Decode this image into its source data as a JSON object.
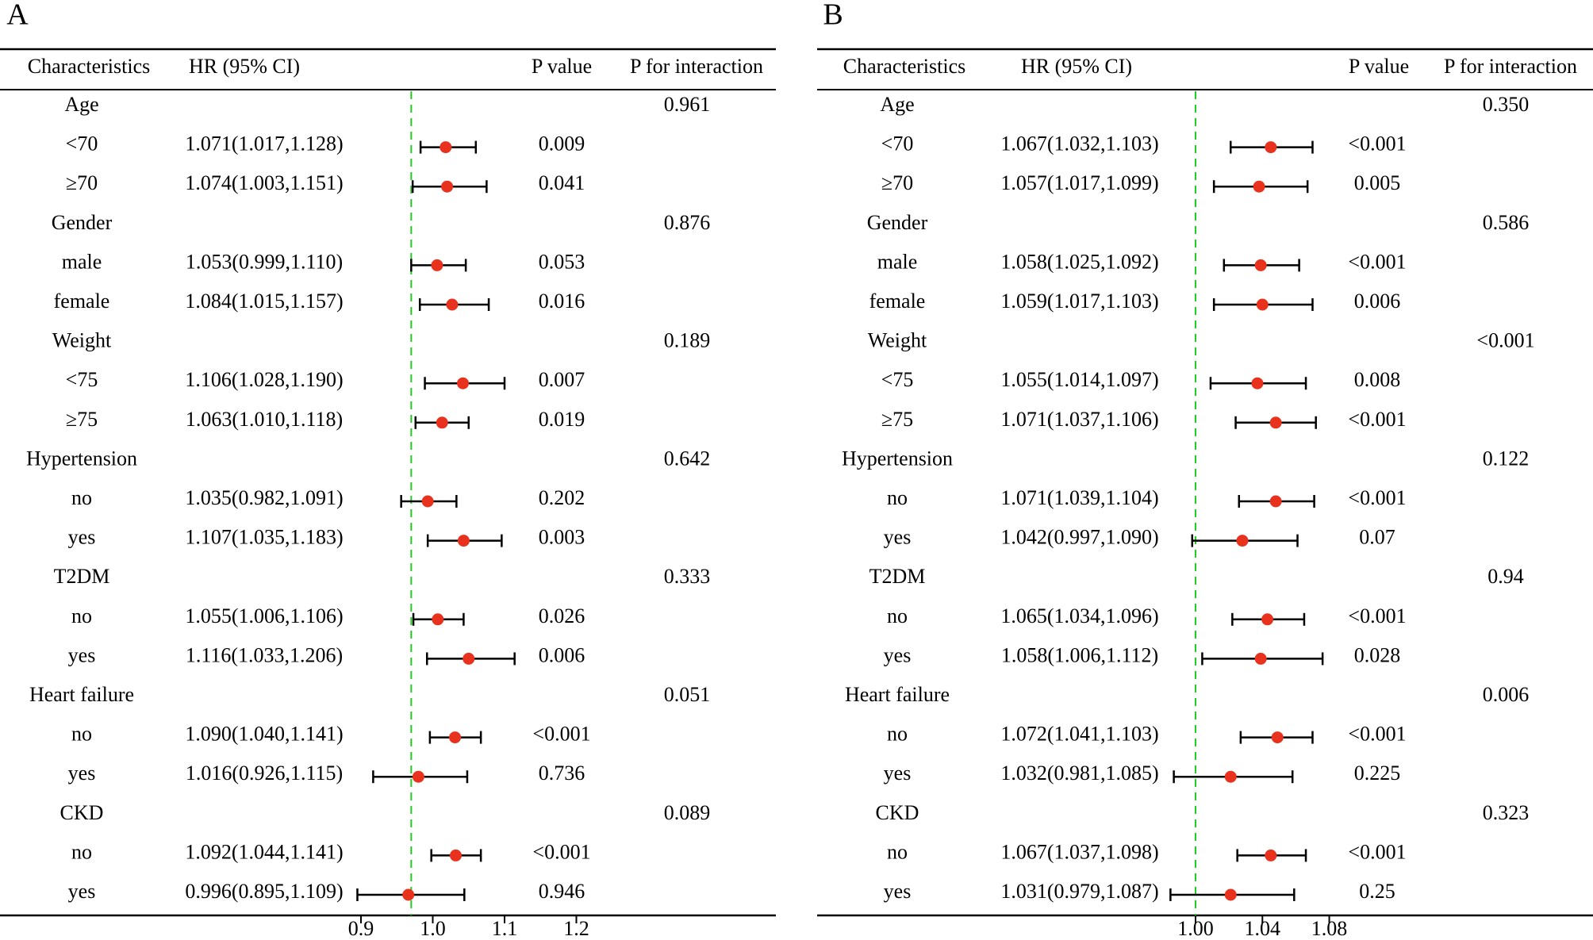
{
  "chart_data": [
    {
      "type": "forest",
      "panel_label": "A",
      "columns": {
        "characteristics": "Characteristics",
        "hr": "HR (95% CI)",
        "p": "P value",
        "p_interaction": "P for interaction"
      },
      "axis": {
        "ticks": [
          0.9,
          1.0,
          1.1,
          1.2
        ],
        "tick_labels": [
          "0.9",
          "1.0",
          "1.1",
          "1.2"
        ],
        "range": [
          0.88,
          1.22
        ],
        "reference_line": 0.97,
        "reference_color": "#22cc22"
      },
      "marker_color": "#e8321e",
      "rows": [
        {
          "kind": "group",
          "label": "Age",
          "p_interaction": "0.961"
        },
        {
          "kind": "sub",
          "label": "<70",
          "hr_text": "1.071(1.017,1.128)",
          "hr": 1.018,
          "lo": 0.983,
          "hi": 1.06,
          "p": "0.009"
        },
        {
          "kind": "sub",
          "label": "≥70",
          "hr_text": "1.074(1.003,1.151)",
          "hr": 1.02,
          "lo": 0.972,
          "hi": 1.075,
          "p": "0.041"
        },
        {
          "kind": "group",
          "label": "Gender",
          "p_interaction": "0.876"
        },
        {
          "kind": "sub",
          "label": "male",
          "hr_text": "1.053(0.999,1.110)",
          "hr": 1.006,
          "lo": 0.97,
          "hi": 1.046,
          "p": "0.053"
        },
        {
          "kind": "sub",
          "label": "female",
          "hr_text": "1.084(1.015,1.157)",
          "hr": 1.027,
          "lo": 0.982,
          "hi": 1.078,
          "p": "0.016"
        },
        {
          "kind": "group",
          "label": "Weight",
          "p_interaction": "0.189"
        },
        {
          "kind": "sub",
          "label": "<75",
          "hr_text": "1.106(1.028,1.190)",
          "hr": 1.042,
          "lo": 0.989,
          "hi": 1.1,
          "p": "0.007"
        },
        {
          "kind": "sub",
          "label": "≥75",
          "hr_text": "1.063(1.010,1.118)",
          "hr": 1.013,
          "lo": 0.976,
          "hi": 1.05,
          "p": "0.019"
        },
        {
          "kind": "group",
          "label": "Hypertension",
          "p_interaction": "0.642"
        },
        {
          "kind": "sub",
          "label": "no",
          "hr_text": "1.035(0.982,1.091)",
          "hr": 0.993,
          "lo": 0.956,
          "hi": 1.033,
          "p": "0.202"
        },
        {
          "kind": "sub",
          "label": "yes",
          "hr_text": "1.107(1.035,1.183)",
          "hr": 1.043,
          "lo": 0.993,
          "hi": 1.096,
          "p": "0.003"
        },
        {
          "kind": "group",
          "label": "T2DM",
          "p_interaction": "0.333"
        },
        {
          "kind": "sub",
          "label": "no",
          "hr_text": "1.055(1.006,1.106)",
          "hr": 1.007,
          "lo": 0.973,
          "hi": 1.043,
          "p": "0.026"
        },
        {
          "kind": "sub",
          "label": "yes",
          "hr_text": "1.116(1.033,1.206)",
          "hr": 1.05,
          "lo": 0.992,
          "hi": 1.114,
          "p": "0.006"
        },
        {
          "kind": "group",
          "label": "Heart failure",
          "p_interaction": "0.051"
        },
        {
          "kind": "sub",
          "label": "no",
          "hr_text": "1.090(1.040,1.141)",
          "hr": 1.031,
          "lo": 0.996,
          "hi": 1.067,
          "p": "<0.001"
        },
        {
          "kind": "sub",
          "label": "yes",
          "hr_text": "1.016(0.926,1.115)",
          "hr": 0.98,
          "lo": 0.917,
          "hi": 1.048,
          "p": "0.736"
        },
        {
          "kind": "group",
          "label": "CKD",
          "p_interaction": "0.089"
        },
        {
          "kind": "sub",
          "label": "no",
          "hr_text": "1.092(1.044,1.141)",
          "hr": 1.032,
          "lo": 0.998,
          "hi": 1.067,
          "p": "<0.001"
        },
        {
          "kind": "sub",
          "label": "yes",
          "hr_text": "0.996(0.895,1.109)",
          "hr": 0.966,
          "lo": 0.895,
          "hi": 1.044,
          "p": "0.946"
        }
      ]
    },
    {
      "type": "forest",
      "panel_label": "B",
      "columns": {
        "characteristics": "Characteristics",
        "hr": "HR (95% CI)",
        "p": "P value",
        "p_interaction": "P for interaction"
      },
      "axis": {
        "ticks": [
          1.0,
          1.04,
          1.08
        ],
        "tick_labels": [
          "1.00",
          "1.04",
          "1.08"
        ],
        "range": [
          0.98,
          1.1
        ],
        "reference_line": 1.0,
        "reference_color": "#22cc22"
      },
      "marker_color": "#e8321e",
      "rows": [
        {
          "kind": "group",
          "label": "Age",
          "p_interaction": "0.350"
        },
        {
          "kind": "sub",
          "label": "<70",
          "hr_text": "1.067(1.032,1.103)",
          "hr": 1.045,
          "lo": 1.021,
          "hi": 1.07,
          "p": "<0.001"
        },
        {
          "kind": "sub",
          "label": "≥70",
          "hr_text": "1.057(1.017,1.099)",
          "hr": 1.038,
          "lo": 1.011,
          "hi": 1.067,
          "p": "0.005"
        },
        {
          "kind": "group",
          "label": "Gender",
          "p_interaction": "0.586"
        },
        {
          "kind": "sub",
          "label": "male",
          "hr_text": "1.058(1.025,1.092)",
          "hr": 1.039,
          "lo": 1.017,
          "hi": 1.062,
          "p": "<0.001"
        },
        {
          "kind": "sub",
          "label": "female",
          "hr_text": "1.059(1.017,1.103)",
          "hr": 1.04,
          "lo": 1.011,
          "hi": 1.07,
          "p": "0.006"
        },
        {
          "kind": "group",
          "label": "Weight",
          "p_interaction": "<0.001"
        },
        {
          "kind": "sub",
          "label": "<75",
          "hr_text": "1.055(1.014,1.097)",
          "hr": 1.037,
          "lo": 1.009,
          "hi": 1.066,
          "p": "0.008"
        },
        {
          "kind": "sub",
          "label": "≥75",
          "hr_text": "1.071(1.037,1.106)",
          "hr": 1.048,
          "lo": 1.024,
          "hi": 1.072,
          "p": "<0.001"
        },
        {
          "kind": "group",
          "label": "Hypertension",
          "p_interaction": "0.122"
        },
        {
          "kind": "sub",
          "label": "no",
          "hr_text": "1.071(1.039,1.104)",
          "hr": 1.048,
          "lo": 1.026,
          "hi": 1.071,
          "p": "<0.001"
        },
        {
          "kind": "sub",
          "label": "yes",
          "hr_text": "1.042(0.997,1.090)",
          "hr": 1.028,
          "lo": 0.998,
          "hi": 1.061,
          "p": "0.07"
        },
        {
          "kind": "group",
          "label": "T2DM",
          "p_interaction": "0.94"
        },
        {
          "kind": "sub",
          "label": "no",
          "hr_text": "1.065(1.034,1.096)",
          "hr": 1.043,
          "lo": 1.022,
          "hi": 1.065,
          "p": "<0.001"
        },
        {
          "kind": "sub",
          "label": "yes",
          "hr_text": "1.058(1.006,1.112)",
          "hr": 1.039,
          "lo": 1.004,
          "hi": 1.076,
          "p": "0.028"
        },
        {
          "kind": "group",
          "label": "Heart failure",
          "p_interaction": "0.006"
        },
        {
          "kind": "sub",
          "label": "no",
          "hr_text": "1.072(1.041,1.103)",
          "hr": 1.049,
          "lo": 1.027,
          "hi": 1.07,
          "p": "<0.001"
        },
        {
          "kind": "sub",
          "label": "yes",
          "hr_text": "1.032(0.981,1.085)",
          "hr": 1.021,
          "lo": 0.987,
          "hi": 1.058,
          "p": "0.225"
        },
        {
          "kind": "group",
          "label": "CKD",
          "p_interaction": "0.323"
        },
        {
          "kind": "sub",
          "label": "no",
          "hr_text": "1.067(1.037,1.098)",
          "hr": 1.045,
          "lo": 1.025,
          "hi": 1.066,
          "p": "<0.001"
        },
        {
          "kind": "sub",
          "label": "yes",
          "hr_text": "1.031(0.979,1.087)",
          "hr": 1.021,
          "lo": 0.985,
          "hi": 1.059,
          "p": "0.25"
        }
      ]
    }
  ]
}
